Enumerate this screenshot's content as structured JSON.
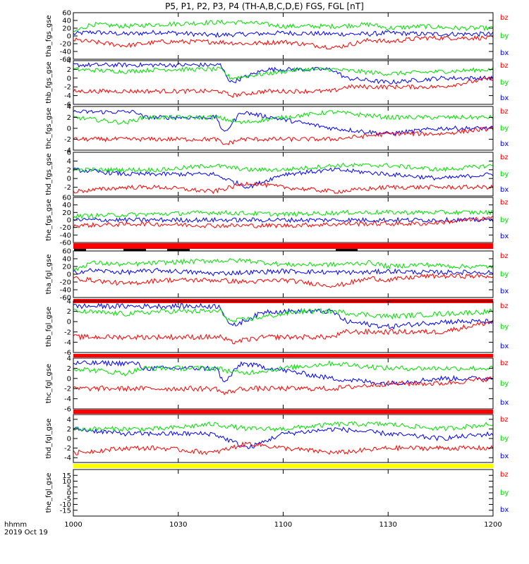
{
  "title": "P5, P1, P2, P3, P4 (TH-A,B,C,D,E) FGS, FGL [nT]",
  "footer": {
    "line1": "hhmm",
    "line2": "2019 Oct 19"
  },
  "colors": {
    "bx": "#0000ff",
    "by": "#00e000",
    "bz": "#ff0000"
  },
  "chart_data": {
    "type": "line",
    "title": "P5, P1, P2, P3, P4 (TH-A,B,C,D,E) FGS, FGL [nT]",
    "x_ticks": [
      "1000",
      "1030",
      "1100",
      "1130",
      "1200"
    ],
    "x_tick_values": [
      600,
      630,
      660,
      690,
      720
    ],
    "x_range": [
      600,
      720
    ],
    "panels": [
      {
        "ylabel": "tha_fgs_gse",
        "ylim": [
          -60,
          60
        ],
        "yticks": [
          -60,
          -40,
          -20,
          0,
          20,
          40,
          60
        ],
        "legend": [
          "bz",
          "by",
          "bx"
        ],
        "series": [
          {
            "name": "bx",
            "x": [
              600,
              605,
              615,
              625,
              640,
              650,
              660,
              675,
              685,
              690,
              700,
              710,
              720
            ],
            "values": [
              5,
              10,
              5,
              10,
              2,
              5,
              8,
              5,
              5,
              8,
              5,
              5,
              5
            ]
          },
          {
            "name": "by",
            "x": [
              600,
              605,
              615,
              625,
              640,
              650,
              660,
              675,
              685,
              690,
              700,
              710,
              720
            ],
            "values": [
              10,
              30,
              25,
              30,
              35,
              35,
              25,
              25,
              30,
              20,
              25,
              20,
              20
            ]
          },
          {
            "name": "bz",
            "x": [
              600,
              605,
              615,
              625,
              640,
              650,
              660,
              675,
              685,
              690,
              700,
              710,
              720
            ],
            "values": [
              -10,
              -15,
              -25,
              -15,
              -15,
              -20,
              -15,
              -30,
              -10,
              -15,
              -5,
              -5,
              -5
            ]
          }
        ]
      },
      {
        "ylabel": "thb_fgs_gse",
        "ylim": [
          -6,
          4
        ],
        "yticks": [
          -6,
          -4,
          -2,
          0,
          2,
          4
        ],
        "legend": [
          "bz",
          "by",
          "bx"
        ],
        "series": [
          {
            "name": "bx",
            "x": [
              600,
              625,
              642,
              645,
              655,
              665,
              674,
              678,
              690,
              705,
              720
            ],
            "values": [
              3,
              3,
              3,
              -1,
              2,
              2,
              2,
              0,
              -1,
              0,
              0
            ]
          },
          {
            "name": "by",
            "x": [
              600,
              615,
              625,
              642,
              645,
              655,
              665,
              674,
              690,
              705,
              720
            ],
            "values": [
              2,
              1.5,
              2,
              2,
              0,
              1,
              2,
              2,
              1,
              1.5,
              2
            ]
          },
          {
            "name": "bz",
            "x": [
              600,
              625,
              642,
              645,
              655,
              665,
              674,
              678,
              690,
              705,
              720
            ],
            "values": [
              -3,
              -3,
              -3,
              -4,
              -3,
              -3,
              -3,
              -2,
              -2,
              -2,
              0
            ]
          }
        ]
      },
      {
        "ylabel": "thc_fgs_gse",
        "ylim": [
          -4,
          4
        ],
        "yticks": [
          -4,
          -2,
          0,
          2,
          4
        ],
        "legend": [
          "bz",
          "by",
          "bx"
        ],
        "series": [
          {
            "name": "bx",
            "x": [
              600,
              618,
              620,
              641,
              643,
              648,
              674,
              690,
              705,
              720
            ],
            "values": [
              3,
              3,
              2,
              2,
              -1,
              3,
              0,
              -1,
              0,
              0
            ]
          },
          {
            "name": "by",
            "x": [
              600,
              615,
              620,
              641,
              648,
              660,
              674,
              690,
              705,
              720
            ],
            "values": [
              2,
              1,
              2,
              2,
              1,
              2,
              3,
              2,
              2,
              2
            ]
          },
          {
            "name": "bz",
            "x": [
              600,
              620,
              641,
              643,
              648,
              674,
              690,
              705,
              720
            ],
            "values": [
              -2,
              -2,
              -2,
              -3,
              -2,
              -2,
              -1,
              -1,
              0
            ]
          }
        ]
      },
      {
        "ylabel": "thd_fgs_gse",
        "ylim": [
          -4,
          6
        ],
        "yticks": [
          -2,
          0,
          2,
          4,
          6
        ],
        "legend": [
          "bz",
          "by",
          "bx"
        ],
        "series": [
          {
            "name": "bx",
            "x": [
              600,
              615,
              625,
              640,
              650,
              660,
              675,
              690,
              705,
              720
            ],
            "values": [
              2,
              1,
              1,
              1,
              -2,
              1,
              2,
              1,
              0,
              1
            ]
          },
          {
            "name": "by",
            "x": [
              600,
              615,
              625,
              640,
              650,
              660,
              675,
              690,
              705,
              720
            ],
            "values": [
              2,
              2,
              2,
              3,
              2,
              2,
              3,
              3,
              2,
              3
            ]
          },
          {
            "name": "bz",
            "x": [
              600,
              615,
              625,
              640,
              650,
              660,
              675,
              690,
              705,
              720
            ],
            "values": [
              -3,
              -2,
              -2,
              -3,
              -1,
              -2,
              -3,
              -2,
              -2,
              -2
            ]
          }
        ]
      },
      {
        "ylabel": "the_fgs_gse",
        "ylim": [
          -60,
          60
        ],
        "yticks": [
          -60,
          -40,
          -20,
          0,
          20,
          40,
          60
        ],
        "legend": [
          "bz",
          "by",
          "bx"
        ],
        "series": [
          {
            "name": "bx",
            "x": [
              600,
              620,
              640,
              660,
              680,
              700,
              720
            ],
            "values": [
              0,
              0,
              0,
              0,
              0,
              0,
              0
            ]
          },
          {
            "name": "by",
            "x": [
              600,
              620,
              640,
              660,
              680,
              700,
              720
            ],
            "values": [
              10,
              15,
              20,
              15,
              20,
              20,
              20
            ]
          },
          {
            "name": "bz",
            "x": [
              600,
              620,
              640,
              660,
              680,
              700,
              720
            ],
            "values": [
              -15,
              -10,
              -15,
              -15,
              -10,
              -10,
              5
            ]
          }
        ]
      },
      {
        "ylabel": "tha_fgl_gse",
        "ylim": [
          -60,
          60
        ],
        "yticks": [
          -60,
          -40,
          -20,
          0,
          20,
          40,
          60
        ],
        "legend": [
          "bz",
          "by",
          "bx"
        ],
        "series": [
          {
            "name": "bx",
            "x": [
              600,
              605,
              615,
              625,
              640,
              650,
              660,
              675,
              685,
              690,
              700,
              710,
              720
            ],
            "values": [
              5,
              10,
              5,
              10,
              2,
              5,
              8,
              5,
              5,
              8,
              5,
              5,
              5
            ]
          },
          {
            "name": "by",
            "x": [
              600,
              605,
              615,
              625,
              640,
              650,
              660,
              675,
              685,
              690,
              700,
              710,
              720
            ],
            "values": [
              10,
              30,
              25,
              30,
              35,
              35,
              25,
              25,
              30,
              20,
              25,
              20,
              20
            ]
          },
          {
            "name": "bz",
            "x": [
              600,
              605,
              615,
              625,
              640,
              650,
              660,
              675,
              685,
              690,
              700,
              710,
              720
            ],
            "values": [
              -10,
              -15,
              -25,
              -15,
              -15,
              -20,
              -15,
              -30,
              -10,
              -15,
              -5,
              -5,
              -5
            ]
          }
        ]
      },
      {
        "ylabel": "thb_fgl_gse",
        "ylim": [
          -6,
          4
        ],
        "yticks": [
          -6,
          -4,
          -2,
          0,
          2,
          4
        ],
        "legend": [
          "bz",
          "by",
          "bx"
        ],
        "series": [
          {
            "name": "bx",
            "x": [
              600,
              625,
              642,
              645,
              655,
              665,
              674,
              678,
              690,
              705,
              720
            ],
            "values": [
              3,
              3,
              3,
              -1,
              2,
              2,
              2,
              0,
              -1,
              0,
              0
            ]
          },
          {
            "name": "by",
            "x": [
              600,
              615,
              625,
              642,
              645,
              655,
              665,
              674,
              690,
              705,
              720
            ],
            "values": [
              2,
              1.5,
              2,
              2,
              0,
              1,
              2,
              2,
              1,
              1.5,
              2
            ]
          },
          {
            "name": "bz",
            "x": [
              600,
              625,
              642,
              645,
              655,
              665,
              674,
              678,
              690,
              705,
              720
            ],
            "values": [
              -3,
              -3,
              -3,
              -4,
              -3,
              -3,
              -3,
              -2,
              -2,
              -2,
              0
            ]
          }
        ]
      },
      {
        "ylabel": "thc_fgl_gse",
        "ylim": [
          -6,
          4
        ],
        "yticks": [
          -6,
          -4,
          -2,
          0,
          2,
          4
        ],
        "legend": [
          "bz",
          "by",
          "bx"
        ],
        "series": [
          {
            "name": "bx",
            "x": [
              600,
              618,
              620,
              641,
              643,
              648,
              674,
              690,
              705,
              720
            ],
            "values": [
              3,
              3,
              2,
              2,
              -1,
              3,
              0,
              -1,
              0,
              0
            ]
          },
          {
            "name": "by",
            "x": [
              600,
              615,
              620,
              641,
              648,
              660,
              674,
              690,
              705,
              720
            ],
            "values": [
              2,
              1,
              2,
              2,
              1,
              2,
              3,
              2,
              2,
              2
            ]
          },
          {
            "name": "bz",
            "x": [
              600,
              620,
              641,
              643,
              648,
              674,
              690,
              705,
              720
            ],
            "values": [
              -2,
              -2,
              -2,
              -3,
              -2,
              -2,
              -1,
              -1,
              0
            ]
          }
        ]
      },
      {
        "ylabel": "thd_fgl_gse",
        "ylim": [
          -5,
          5
        ],
        "yticks": [
          -4,
          -2,
          0,
          2,
          4
        ],
        "legend": [
          "bz",
          "by",
          "bx"
        ],
        "series": [
          {
            "name": "bx",
            "x": [
              600,
              615,
              625,
              640,
              650,
              660,
              675,
              690,
              705,
              720
            ],
            "values": [
              2,
              1,
              1,
              1,
              -2,
              1,
              2,
              1,
              0,
              1
            ]
          },
          {
            "name": "by",
            "x": [
              600,
              615,
              625,
              640,
              650,
              660,
              675,
              690,
              705,
              720
            ],
            "values": [
              2,
              2,
              2,
              3,
              2,
              2,
              3,
              3,
              2,
              3
            ]
          },
          {
            "name": "bz",
            "x": [
              600,
              615,
              625,
              640,
              650,
              660,
              675,
              690,
              705,
              720
            ],
            "values": [
              -3,
              -2,
              -2,
              -3,
              -1,
              -2,
              -3,
              -2,
              -2,
              -2
            ]
          }
        ]
      },
      {
        "ylabel": "the_fgl_gse",
        "ylim": [
          -20,
          20
        ],
        "yticks": [
          -15,
          -10,
          -5,
          0,
          5,
          10,
          15
        ],
        "legend": [
          "bz",
          "by",
          "bx"
        ],
        "series": []
      }
    ]
  }
}
